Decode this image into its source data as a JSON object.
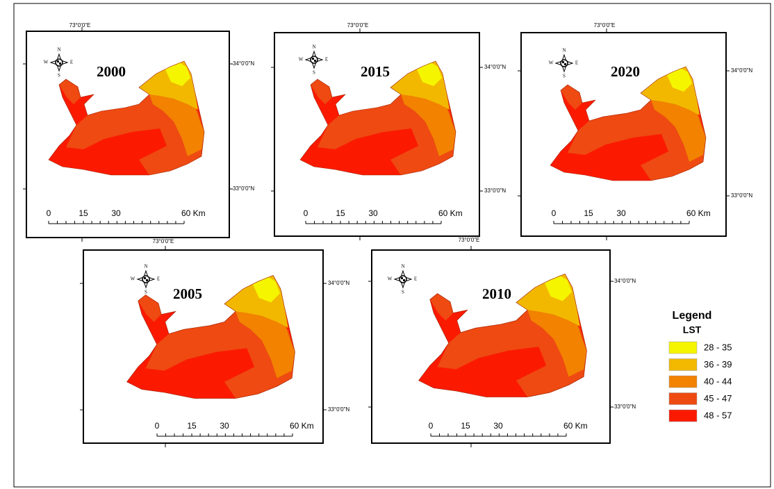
{
  "figure": {
    "maps": [
      {
        "year": "2000",
        "lon_label": "73°0'0\"E",
        "lat_labels": [
          "34°0'0\"N",
          "33°0'0\"N"
        ],
        "scale_labels": [
          "0",
          "15",
          "30",
          "60 Km"
        ]
      },
      {
        "year": "2015",
        "lon_label": "73°0'0\"E",
        "lat_labels": [
          "34°0'0\"N",
          "33°0'0\"N"
        ],
        "scale_labels": [
          "0",
          "15",
          "30",
          "60 Km"
        ]
      },
      {
        "year": "2020",
        "lon_label": "73°0'0\"E",
        "lat_labels": [
          "34°0'0\"N",
          "33°0'0\"N"
        ],
        "scale_labels": [
          "0",
          "15",
          "30",
          "60 Km"
        ]
      },
      {
        "year": "2005",
        "lon_label": "73°0'0\"E",
        "lat_labels": [
          "34°0'0\"N",
          "33°0'0\"N"
        ],
        "scale_labels": [
          "0",
          "15",
          "30",
          "60 Km"
        ]
      },
      {
        "year": "2010",
        "lon_label": "73°0'0\"E",
        "lat_labels": [
          "34°0'0\"N",
          "33°0'0\"N"
        ],
        "scale_labels": [
          "0",
          "15",
          "30",
          "60 Km"
        ]
      }
    ],
    "compass": [
      "N",
      "E",
      "S",
      "W"
    ],
    "legend": {
      "title": "Legend",
      "subtitle": "LST",
      "classes": [
        {
          "label": "28 - 35",
          "color": "#f5f500"
        },
        {
          "label": "36 - 39",
          "color": "#f2b800"
        },
        {
          "label": "40 - 44",
          "color": "#f28200"
        },
        {
          "label": "45 - 47",
          "color": "#ee4a12"
        },
        {
          "label": "48 - 57",
          "color": "#fb1a00"
        }
      ]
    }
  }
}
